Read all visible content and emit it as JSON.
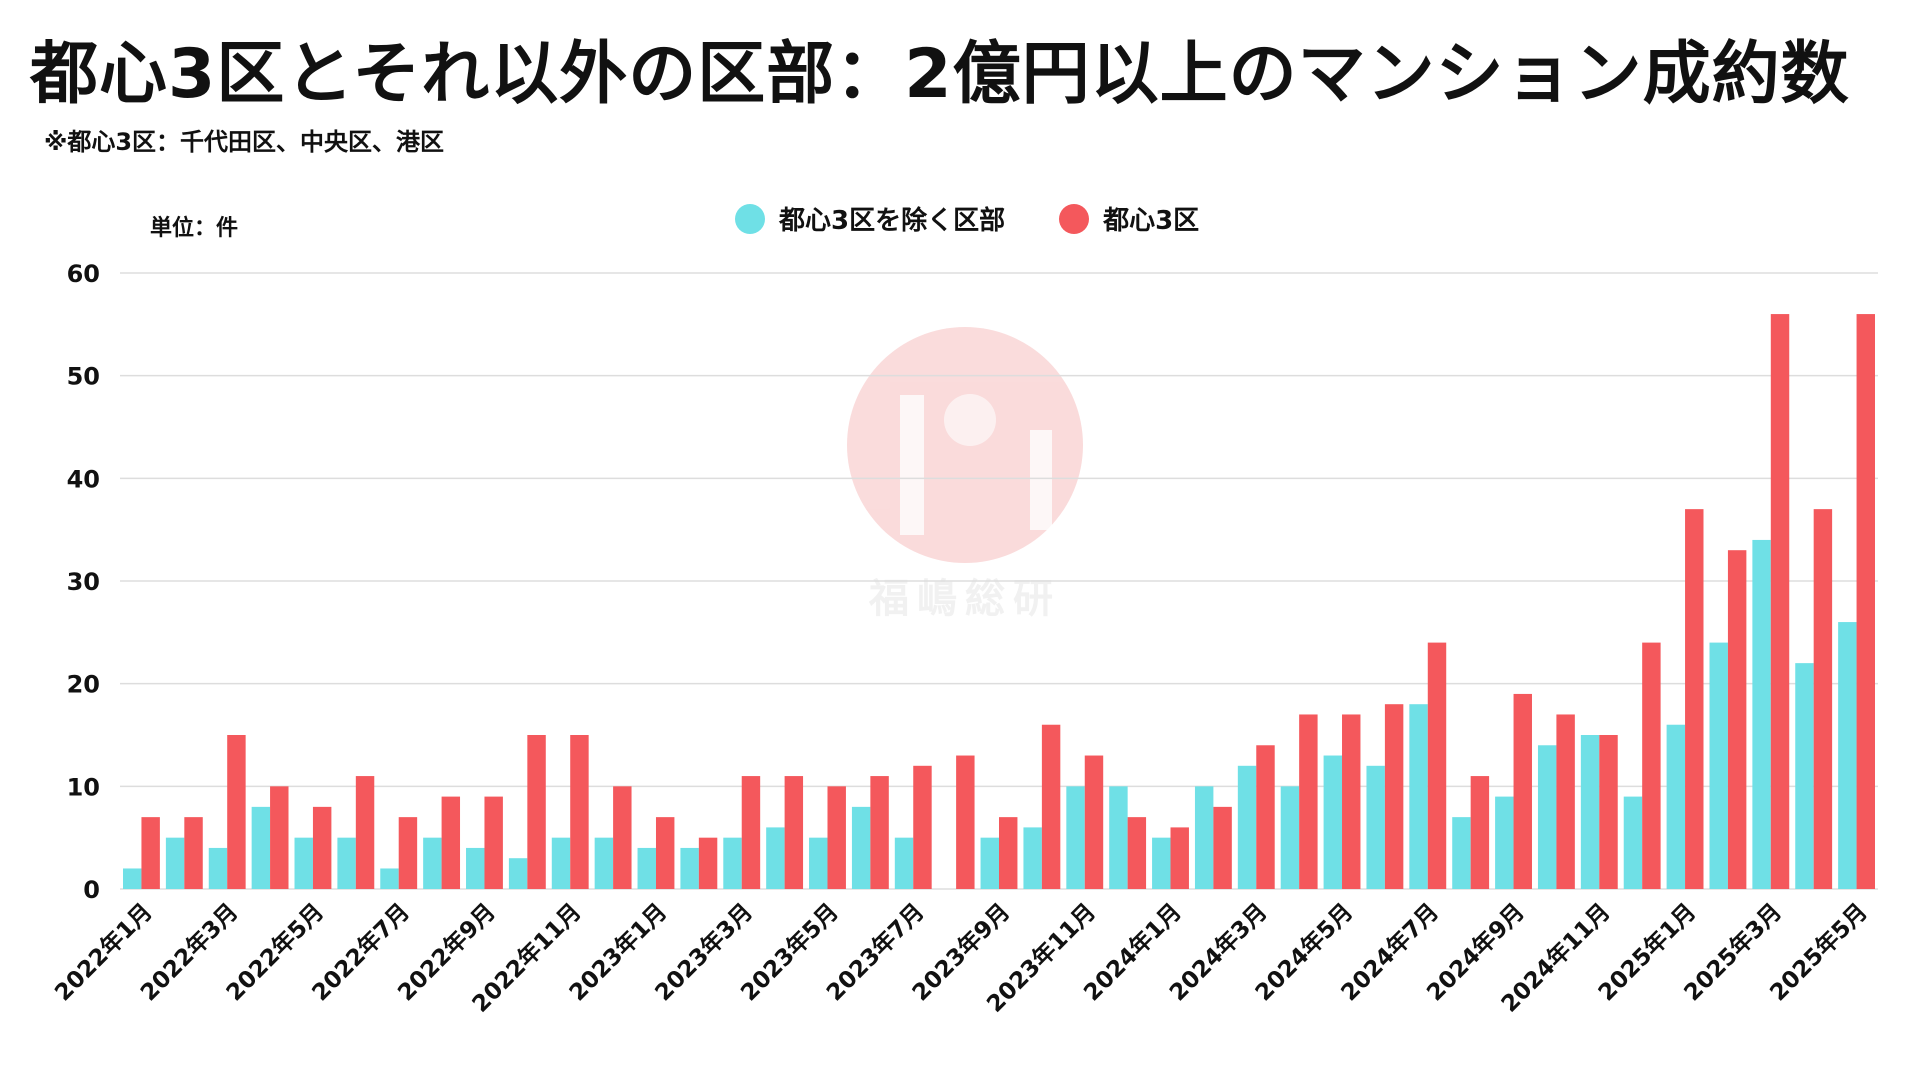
{
  "title": "都心3区とそれ以外の区部：2億円以上のマンション成約数",
  "subtitle": "※都心3区：千代田区、中央区、港区",
  "unit_label": "単位：件",
  "watermark": "福嶋総研",
  "colors": {
    "outer": "#6fe0e6",
    "central": "#f4585c",
    "grid": "#dddddd"
  },
  "chart_data": {
    "type": "bar",
    "ylim": [
      0,
      60
    ],
    "yticks": [
      0,
      10,
      20,
      30,
      40,
      50,
      60
    ],
    "grid": true,
    "legend_position": "top-center",
    "categories": [
      "2022年1月",
      "2022年2月",
      "2022年3月",
      "2022年4月",
      "2022年5月",
      "2022年6月",
      "2022年7月",
      "2022年8月",
      "2022年9月",
      "2022年10月",
      "2022年11月",
      "2022年12月",
      "2023年1月",
      "2023年2月",
      "2023年3月",
      "2023年4月",
      "2023年5月",
      "2023年6月",
      "2023年7月",
      "2023年8月",
      "2023年9月",
      "2023年10月",
      "2023年11月",
      "2023年12月",
      "2024年1月",
      "2024年2月",
      "2024年3月",
      "2024年4月",
      "2024年5月",
      "2024年6月",
      "2024年7月",
      "2024年8月",
      "2024年9月",
      "2024年10月",
      "2024年11月",
      "2024年12月",
      "2025年1月",
      "2025年2月",
      "2025年3月",
      "2025年4月",
      "2025年5月"
    ],
    "shown_tick_labels": [
      "2022年1月",
      "2022年3月",
      "2022年5月",
      "2022年7月",
      "2022年9月",
      "2022年11月",
      "2023年1月",
      "2023年3月",
      "2023年5月",
      "2023年7月",
      "2023年9月",
      "2023年11月",
      "2024年1月",
      "2024年3月",
      "2024年5月",
      "2024年7月",
      "2024年9月",
      "2024年11月",
      "2025年1月",
      "2025年3月",
      "2025年5月"
    ],
    "series": [
      {
        "name": "都心3区を除く区部",
        "color": "#6fe0e6",
        "values": [
          2,
          5,
          4,
          8,
          5,
          5,
          2,
          5,
          4,
          3,
          5,
          5,
          4,
          4,
          5,
          6,
          5,
          8,
          5,
          0,
          5,
          6,
          10,
          10,
          5,
          10,
          12,
          10,
          13,
          12,
          18,
          7,
          9,
          14,
          15,
          9,
          16,
          24,
          34,
          22,
          26
        ]
      },
      {
        "name": "都心3区",
        "color": "#f4585c",
        "values": [
          7,
          7,
          15,
          10,
          8,
          11,
          7,
          9,
          9,
          15,
          15,
          10,
          7,
          5,
          11,
          11,
          10,
          11,
          12,
          13,
          7,
          16,
          13,
          7,
          6,
          8,
          14,
          17,
          17,
          18,
          24,
          11,
          19,
          17,
          15,
          24,
          37,
          33,
          56,
          37,
          56
        ]
      }
    ]
  }
}
